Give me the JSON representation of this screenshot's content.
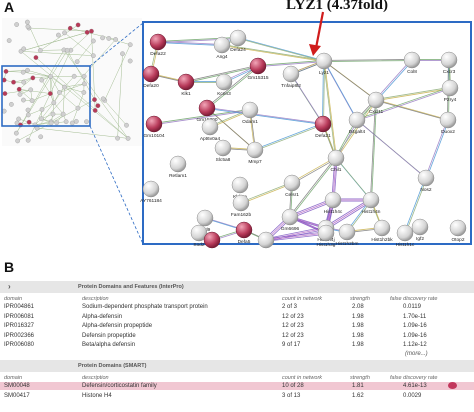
{
  "panel_a": {
    "label": "A",
    "annotation": "LYZ1 (4.37fold)",
    "nodes": [
      {
        "label": "Defa22",
        "color": "#b73a58"
      },
      {
        "label": "Defa24",
        "color": "#d9d9d9"
      },
      {
        "label": "Ang4",
        "color": "#d9d9d9"
      },
      {
        "label": "Defa20",
        "color": "#b73a58"
      },
      {
        "label": "Klk1",
        "color": "#b73a58"
      },
      {
        "label": "Kcnn3",
        "color": "#d9d9d9"
      },
      {
        "label": "Gm15315",
        "color": "#b73a58"
      },
      {
        "label": "Tnfaip8l2",
        "color": "#d9d9d9"
      },
      {
        "label": "Lyz1",
        "color": "#d9d9d9"
      },
      {
        "label": "Gm15300",
        "color": "#b73a58"
      },
      {
        "label": "Gm10104",
        "color": "#b73a58"
      },
      {
        "label": "Apt6v0a4",
        "color": "#d9d9d9"
      },
      {
        "label": "Odam1",
        "color": "#d9d9d9"
      },
      {
        "label": "Mmp7",
        "color": "#d9d9d9"
      },
      {
        "label": "Defa21",
        "color": "#b73a58"
      },
      {
        "label": "Slc5a8",
        "color": "#d9d9d9"
      },
      {
        "label": "Retlam1",
        "color": "#d9d9d9"
      },
      {
        "label": "Klrb1a",
        "color": "#d9d9d9"
      },
      {
        "label": "AY761184",
        "color": "#d9d9d9"
      },
      {
        "label": "Fam162b",
        "color": "#d9d9d9"
      },
      {
        "label": "Celsr1",
        "color": "#d9d9d9"
      },
      {
        "label": "Gm6696",
        "color": "#d9d9d9"
      },
      {
        "label": "Chil1",
        "color": "#d9d9d9"
      },
      {
        "label": "Hist1h4c",
        "color": "#d9d9d9"
      },
      {
        "label": "Hist1h4n",
        "color": "#d9d9d9"
      },
      {
        "label": "Fzd9",
        "color": "#d9d9d9"
      },
      {
        "label": "Sod2",
        "color": "#d9d9d9"
      },
      {
        "label": "A4gnt",
        "color": "#b73a58"
      },
      {
        "label": "Defa5",
        "color": "#b73a58"
      },
      {
        "label": "Wnt3",
        "color": "#d9d9d9"
      },
      {
        "label": "Hist1h4j",
        "color": "#d9d9d9"
      },
      {
        "label": "Hist1h3g",
        "color": "#d9d9d9"
      },
      {
        "label": "Hist1h2bm",
        "color": "#d9d9d9"
      },
      {
        "label": "Hist1h2bk",
        "color": "#d9d9d9"
      },
      {
        "label": "Hist1h1c",
        "color": "#d9d9d9"
      },
      {
        "label": "Col8",
        "color": "#d9d9d9"
      },
      {
        "label": "Cxcr3",
        "color": "#d9d9d9"
      },
      {
        "label": "P2ry4",
        "color": "#d9d9d9"
      },
      {
        "label": "Cxcl11",
        "color": "#d9d9d9"
      },
      {
        "label": "Duox2",
        "color": "#d9d9d9"
      },
      {
        "label": "B4galt4",
        "color": "#d9d9d9"
      },
      {
        "label": "Nos2",
        "color": "#d9d9d9"
      },
      {
        "label": "Igf2",
        "color": "#d9d9d9"
      },
      {
        "label": "Otop2",
        "color": "#d9d9d9"
      }
    ]
  },
  "panel_b": {
    "label": "B",
    "sections": [
      {
        "title": "Protein Domains and Features (InterPro)",
        "expander": "›",
        "columns": [
          "domain",
          "description",
          "count in network",
          "strength",
          "false discovery rate"
        ],
        "rows": [
          {
            "domain": "IPR004861",
            "description": "Sodium-dependent phosphate transport protein",
            "count": "2 of 3",
            "strength": "2.08",
            "fdr": "0.0119"
          },
          {
            "domain": "IPR006081",
            "description": "Alpha-defensin",
            "count": "12 of 23",
            "strength": "1.98",
            "fdr": "1.70e-11"
          },
          {
            "domain": "IPR016327",
            "description": "Alpha-defensin propeptide",
            "count": "12 of 23",
            "strength": "1.98",
            "fdr": "1.09e-16"
          },
          {
            "domain": "IPR002366",
            "description": "Defensin propeptide",
            "count": "12 of 23",
            "strength": "1.98",
            "fdr": "1.09e-16"
          },
          {
            "domain": "IPR006080",
            "description": "Beta/alpha defensin",
            "count": "9 of 17",
            "strength": "1.98",
            "fdr": "1.12e-12"
          }
        ],
        "more": "(more...)"
      },
      {
        "title": "Protein Domains (SMART)",
        "columns": [
          "domain",
          "description",
          "count in network",
          "strength",
          "false discovery rate"
        ],
        "rows": [
          {
            "domain": "SM00048",
            "description": "Defensin/corticostatin family",
            "count": "10 of 28",
            "strength": "1.81",
            "fdr": "4.61e-13",
            "highlight": true
          },
          {
            "domain": "SM00417",
            "description": "Histone H4",
            "count": "3 of 13",
            "strength": "1.62",
            "fdr": "0.0029"
          }
        ]
      }
    ],
    "highlight_color": "#f1c7d2"
  }
}
